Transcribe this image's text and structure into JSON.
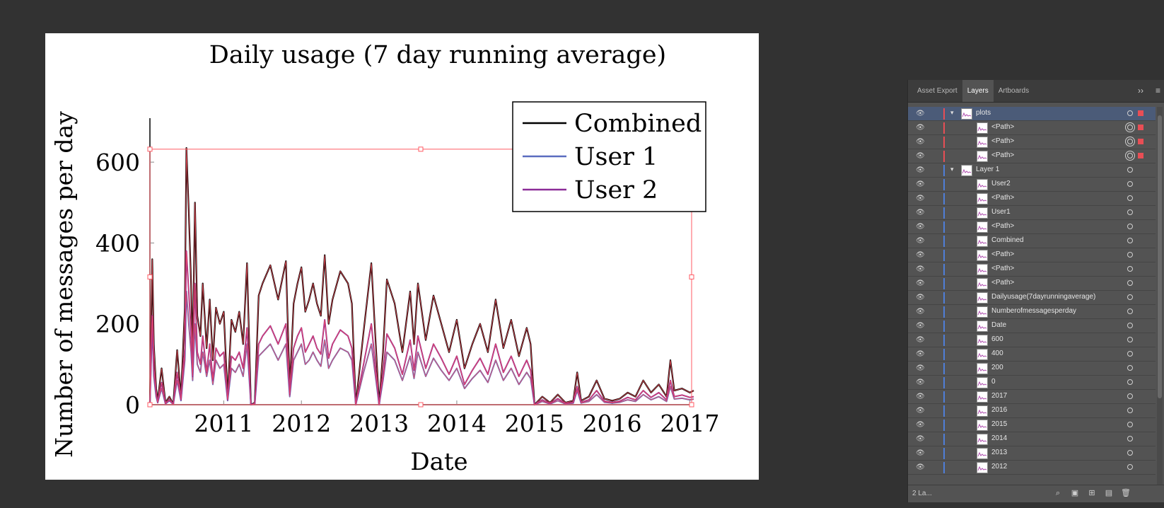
{
  "chart_data": {
    "type": "line",
    "title": "Daily usage (7 day running average)",
    "xlabel": "Date",
    "ylabel": "Number of messages per day",
    "xlim": [
      2010.05,
      2017.05
    ],
    "ylim": [
      0,
      700
    ],
    "xticks": [
      "2011",
      "2012",
      "2013",
      "2014",
      "2015",
      "2016",
      "2017"
    ],
    "xtick_values": [
      2011,
      2012,
      2013,
      2014,
      2015,
      2016,
      2017
    ],
    "yticks": [
      "0",
      "200",
      "400",
      "600"
    ],
    "ytick_values": [
      0,
      200,
      400,
      600
    ],
    "legend_position": "top-right",
    "series": [
      {
        "name": "Combined",
        "color": "#000000",
        "x": [
          2010.05,
          2010.08,
          2010.1,
          2010.13,
          2010.15,
          2010.2,
          2010.25,
          2010.3,
          2010.35,
          2010.4,
          2010.45,
          2010.5,
          2010.52,
          2010.55,
          2010.58,
          2010.6,
          2010.63,
          2010.66,
          2010.7,
          2010.73,
          2010.78,
          2010.82,
          2010.86,
          2010.9,
          2010.95,
          2011.0,
          2011.05,
          2011.1,
          2011.15,
          2011.2,
          2011.25,
          2011.3,
          2011.35,
          2011.4,
          2011.45,
          2011.5,
          2011.6,
          2011.7,
          2011.8,
          2011.85,
          2011.9,
          2011.95,
          2012.0,
          2012.05,
          2012.1,
          2012.15,
          2012.2,
          2012.25,
          2012.3,
          2012.35,
          2012.4,
          2012.5,
          2012.6,
          2012.65,
          2012.7,
          2012.8,
          2012.9,
          2013.0,
          2013.05,
          2013.1,
          2013.2,
          2013.3,
          2013.4,
          2013.45,
          2013.5,
          2013.6,
          2013.7,
          2013.8,
          2013.9,
          2014.0,
          2014.1,
          2014.2,
          2014.3,
          2014.4,
          2014.5,
          2014.6,
          2014.7,
          2014.8,
          2014.9,
          2014.95,
          2015.0,
          2015.1,
          2015.2,
          2015.3,
          2015.4,
          2015.5,
          2015.55,
          2015.6,
          2015.7,
          2015.8,
          2015.9,
          2016.0,
          2016.1,
          2016.2,
          2016.3,
          2016.4,
          2016.5,
          2016.6,
          2016.7,
          2016.75,
          2016.8,
          2016.9,
          2017.0,
          2017.05
        ],
        "y": [
          5,
          360,
          150,
          40,
          10,
          90,
          5,
          20,
          2,
          135,
          20,
          240,
          635,
          480,
          300,
          120,
          500,
          220,
          170,
          300,
          140,
          260,
          110,
          240,
          200,
          230,
          20,
          210,
          180,
          230,
          150,
          350,
          0,
          5,
          270,
          300,
          345,
          260,
          355,
          40,
          250,
          300,
          340,
          230,
          260,
          300,
          250,
          220,
          370,
          200,
          260,
          330,
          300,
          250,
          0,
          180,
          350,
          0,
          130,
          310,
          250,
          130,
          280,
          150,
          300,
          160,
          270,
          200,
          130,
          210,
          90,
          150,
          200,
          130,
          260,
          140,
          210,
          120,
          190,
          150,
          0,
          20,
          5,
          25,
          5,
          10,
          80,
          10,
          20,
          60,
          15,
          10,
          15,
          30,
          20,
          60,
          30,
          50,
          20,
          110,
          35,
          40,
          30,
          35
        ]
      },
      {
        "name": "User 1",
        "color": "#5b6cc0",
        "x": [
          2010.05,
          2010.08,
          2010.1,
          2010.13,
          2010.15,
          2010.2,
          2010.25,
          2010.3,
          2010.35,
          2010.4,
          2010.45,
          2010.5,
          2010.52,
          2010.55,
          2010.58,
          2010.6,
          2010.63,
          2010.66,
          2010.7,
          2010.73,
          2010.78,
          2010.82,
          2010.86,
          2010.9,
          2010.95,
          2011.0,
          2011.05,
          2011.1,
          2011.15,
          2011.2,
          2011.25,
          2011.3,
          2011.35,
          2011.4,
          2011.45,
          2011.5,
          2011.6,
          2011.7,
          2011.8,
          2011.85,
          2011.9,
          2011.95,
          2012.0,
          2012.05,
          2012.1,
          2012.15,
          2012.2,
          2012.25,
          2012.3,
          2012.35,
          2012.4,
          2012.5,
          2012.6,
          2012.65,
          2012.7,
          2012.8,
          2012.9,
          2013.0,
          2013.05,
          2013.1,
          2013.2,
          2013.3,
          2013.4,
          2013.45,
          2013.5,
          2013.6,
          2013.7,
          2013.8,
          2013.9,
          2014.0,
          2014.1,
          2014.2,
          2014.3,
          2014.4,
          2014.5,
          2014.6,
          2014.7,
          2014.8,
          2014.9,
          2014.95,
          2015.0,
          2015.1,
          2015.2,
          2015.3,
          2015.4,
          2015.5,
          2015.55,
          2015.6,
          2015.7,
          2015.8,
          2015.9,
          2016.0,
          2016.1,
          2016.2,
          2016.3,
          2016.4,
          2016.5,
          2016.6,
          2016.7,
          2016.75,
          2016.8,
          2016.9,
          2017.0,
          2017.05
        ],
        "y": [
          2,
          200,
          70,
          20,
          5,
          40,
          2,
          10,
          1,
          60,
          10,
          110,
          280,
          200,
          130,
          60,
          200,
          100,
          80,
          130,
          70,
          110,
          50,
          110,
          90,
          100,
          10,
          90,
          80,
          100,
          70,
          150,
          0,
          2,
          120,
          130,
          150,
          110,
          150,
          20,
          110,
          130,
          150,
          100,
          110,
          130,
          110,
          95,
          160,
          90,
          110,
          140,
          130,
          110,
          0,
          80,
          150,
          0,
          60,
          130,
          110,
          60,
          120,
          65,
          130,
          70,
          115,
          85,
          60,
          90,
          40,
          65,
          85,
          55,
          110,
          60,
          90,
          50,
          80,
          65,
          0,
          8,
          2,
          10,
          2,
          4,
          35,
          4,
          8,
          25,
          6,
          4,
          6,
          12,
          8,
          25,
          12,
          20,
          8,
          45,
          14,
          16,
          12,
          14
        ]
      },
      {
        "name": "User 2",
        "color": "#8b2c98",
        "x": [
          2010.05,
          2010.08,
          2010.1,
          2010.13,
          2010.15,
          2010.2,
          2010.25,
          2010.3,
          2010.35,
          2010.4,
          2010.45,
          2010.5,
          2010.52,
          2010.55,
          2010.58,
          2010.6,
          2010.63,
          2010.66,
          2010.7,
          2010.73,
          2010.78,
          2010.82,
          2010.86,
          2010.9,
          2010.95,
          2011.0,
          2011.05,
          2011.1,
          2011.15,
          2011.2,
          2011.25,
          2011.3,
          2011.35,
          2011.4,
          2011.45,
          2011.5,
          2011.6,
          2011.7,
          2011.8,
          2011.85,
          2011.9,
          2011.95,
          2012.0,
          2012.05,
          2012.1,
          2012.15,
          2012.2,
          2012.25,
          2012.3,
          2012.35,
          2012.4,
          2012.5,
          2012.6,
          2012.65,
          2012.7,
          2012.8,
          2012.9,
          2013.0,
          2013.05,
          2013.1,
          2013.2,
          2013.3,
          2013.4,
          2013.45,
          2013.5,
          2013.6,
          2013.7,
          2013.8,
          2013.9,
          2014.0,
          2014.1,
          2014.2,
          2014.3,
          2014.4,
          2014.5,
          2014.6,
          2014.7,
          2014.8,
          2014.9,
          2014.95,
          2015.0,
          2015.1,
          2015.2,
          2015.3,
          2015.4,
          2015.5,
          2015.55,
          2015.6,
          2015.7,
          2015.8,
          2015.9,
          2016.0,
          2016.1,
          2016.2,
          2016.3,
          2016.4,
          2016.5,
          2016.6,
          2016.7,
          2016.75,
          2016.8,
          2016.9,
          2017.0,
          2017.05
        ],
        "y": [
          3,
          220,
          90,
          25,
          6,
          55,
          3,
          12,
          1,
          80,
          12,
          140,
          380,
          280,
          180,
          70,
          300,
          130,
          100,
          170,
          80,
          150,
          60,
          140,
          120,
          130,
          12,
          120,
          110,
          130,
          90,
          190,
          0,
          3,
          150,
          170,
          195,
          150,
          200,
          25,
          140,
          170,
          190,
          130,
          150,
          170,
          140,
          125,
          210,
          115,
          150,
          185,
          170,
          140,
          0,
          100,
          200,
          0,
          75,
          175,
          140,
          75,
          160,
          85,
          170,
          90,
          150,
          115,
          75,
          120,
          50,
          85,
          115,
          75,
          150,
          80,
          120,
          70,
          110,
          85,
          0,
          12,
          3,
          15,
          3,
          6,
          45,
          6,
          12,
          35,
          9,
          6,
          9,
          18,
          12,
          35,
          18,
          30,
          12,
          60,
          20,
          24,
          18,
          20
        ]
      }
    ]
  },
  "panel": {
    "tabs": [
      "Asset Export",
      "Layers",
      "Artboards"
    ],
    "active_tab": "Layers",
    "more_label": "››",
    "menu_label": "≡",
    "layers": [
      {
        "name": "plots",
        "level": 0,
        "color": "#e84e55",
        "expanded": true,
        "selected": true,
        "target": "single",
        "has_sel": true
      },
      {
        "name": "<Path>",
        "level": 1,
        "color": "#e84e55",
        "target": "double",
        "has_sel": true
      },
      {
        "name": "<Path>",
        "level": 1,
        "color": "#e84e55",
        "target": "double",
        "has_sel": true
      },
      {
        "name": "<Path>",
        "level": 1,
        "color": "#e84e55",
        "target": "double",
        "has_sel": true
      },
      {
        "name": "Layer 1",
        "level": 0,
        "color": "#4f7ed8",
        "expanded": true,
        "target": "single"
      },
      {
        "name": "User2",
        "level": 1,
        "color": "#4f7ed8",
        "target": "single"
      },
      {
        "name": "<Path>",
        "level": 1,
        "color": "#4f7ed8",
        "target": "single"
      },
      {
        "name": "User1",
        "level": 1,
        "color": "#4f7ed8",
        "target": "single"
      },
      {
        "name": "<Path>",
        "level": 1,
        "color": "#4f7ed8",
        "target": "single"
      },
      {
        "name": "Combined",
        "level": 1,
        "color": "#4f7ed8",
        "target": "single"
      },
      {
        "name": "<Path>",
        "level": 1,
        "color": "#4f7ed8",
        "target": "single"
      },
      {
        "name": "<Path>",
        "level": 1,
        "color": "#4f7ed8",
        "target": "single"
      },
      {
        "name": "<Path>",
        "level": 1,
        "color": "#4f7ed8",
        "target": "single"
      },
      {
        "name": "Dailyusage(7dayrunningaverage)",
        "level": 1,
        "color": "#4f7ed8",
        "target": "single"
      },
      {
        "name": "Numberofmessagesperday",
        "level": 1,
        "color": "#4f7ed8",
        "target": "single"
      },
      {
        "name": "Date",
        "level": 1,
        "color": "#4f7ed8",
        "target": "single"
      },
      {
        "name": "600",
        "level": 1,
        "color": "#4f7ed8",
        "target": "single"
      },
      {
        "name": "400",
        "level": 1,
        "color": "#4f7ed8",
        "target": "single"
      },
      {
        "name": "200",
        "level": 1,
        "color": "#4f7ed8",
        "target": "single"
      },
      {
        "name": "0",
        "level": 1,
        "color": "#4f7ed8",
        "target": "single"
      },
      {
        "name": "2017",
        "level": 1,
        "color": "#4f7ed8",
        "target": "single"
      },
      {
        "name": "2016",
        "level": 1,
        "color": "#4f7ed8",
        "target": "single"
      },
      {
        "name": "2015",
        "level": 1,
        "color": "#4f7ed8",
        "target": "single"
      },
      {
        "name": "2014",
        "level": 1,
        "color": "#4f7ed8",
        "target": "single"
      },
      {
        "name": "2013",
        "level": 1,
        "color": "#4f7ed8",
        "target": "single"
      },
      {
        "name": "2012",
        "level": 1,
        "color": "#4f7ed8",
        "target": "single"
      }
    ],
    "layer_count": "2 La...",
    "footer_icons": [
      "locate-object-icon",
      "make-clipping-mask-icon",
      "create-sublayer-icon",
      "create-new-layer-icon",
      "delete-layer-icon"
    ]
  }
}
